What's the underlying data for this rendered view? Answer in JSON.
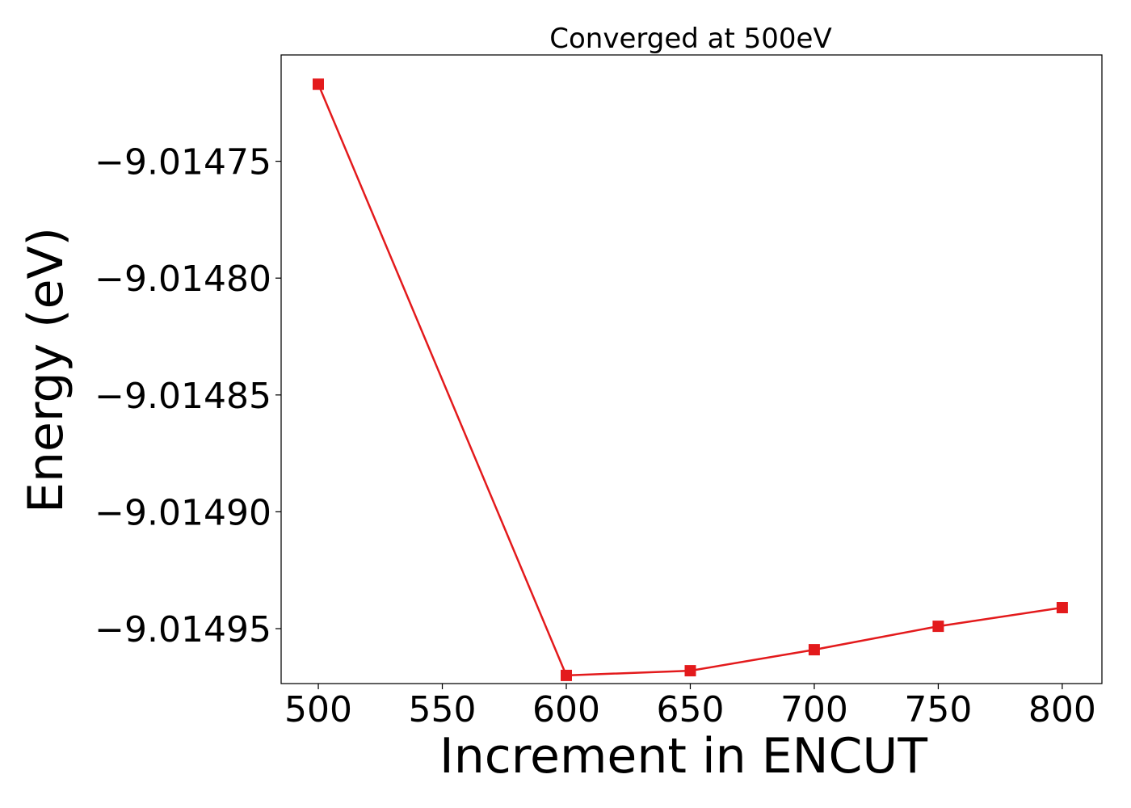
{
  "chart_data": {
    "type": "line",
    "title": "Converged at 500eV",
    "xlabel": "Increment in ENCUT",
    "ylabel": "Energy (eV)",
    "x": [
      500,
      600,
      650,
      700,
      750,
      800
    ],
    "series": [
      {
        "values": [
          -9.014717,
          -9.01497,
          -9.014968,
          -9.014959,
          -9.014949,
          -9.014941
        ],
        "color": "#e31a1c",
        "marker": "square"
      }
    ],
    "xlim": [
      485,
      816
    ],
    "ylim": [
      -9.0149735,
      -9.0147045
    ],
    "xticks": [
      500,
      550,
      600,
      650,
      700,
      750,
      800
    ],
    "xtick_labels": [
      "500",
      "550",
      "600",
      "650",
      "700",
      "750",
      "800"
    ],
    "yticks": [
      -9.01475,
      -9.0148,
      -9.01485,
      -9.0149,
      -9.01495
    ],
    "ytick_labels": [
      "−9.01475",
      "−9.01480",
      "−9.01485",
      "−9.01490",
      "−9.01495"
    ],
    "grid": false,
    "legend": false
  }
}
